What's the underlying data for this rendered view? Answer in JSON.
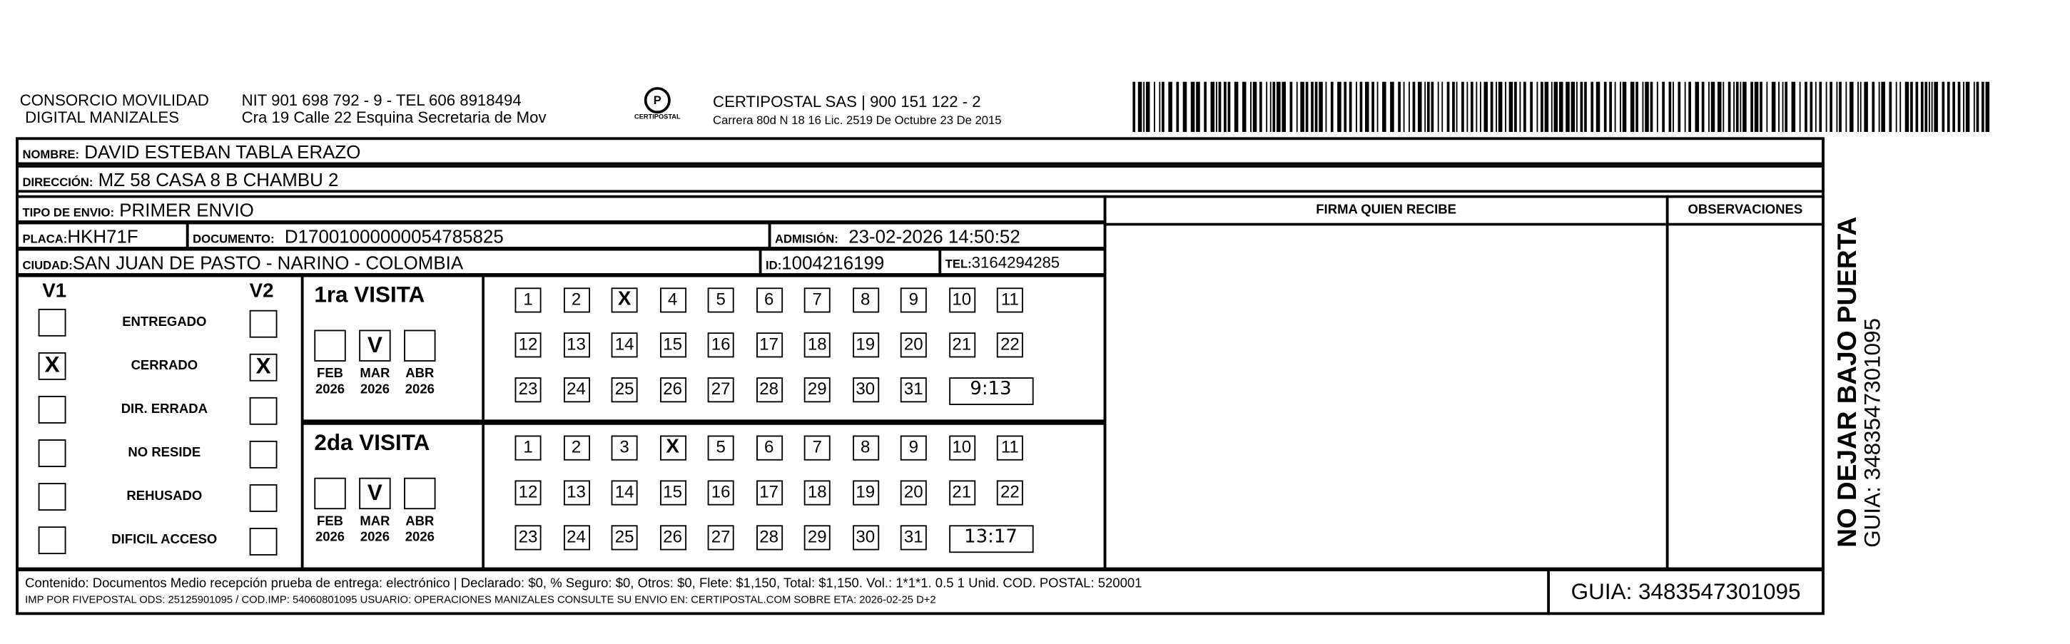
{
  "header": {
    "company_line1": "CONSORCIO MOVILIDAD",
    "company_line2": "DIGITAL MANIZALES",
    "nit": "NIT 901 698 792 - 9 - TEL 606 8918494",
    "address": "Cra 19 Calle 22 Esquina Secretaria de Mov",
    "logo_text": "CERTIPOSTAL",
    "carrier": "CERTIPOSTAL SAS | 900 151 122 - 2",
    "license": "Carrera 80d N 18 16  Lic. 2519 De Octubre 23 De 2015"
  },
  "fields": {
    "nombre_label": "NOMBRE:",
    "nombre": "DAVID ESTEBAN TABLA ERAZO",
    "direccion_label": "DIRECCIÓN:",
    "direccion": "MZ 58 CASA 8 B CHAMBU 2",
    "tipo_label": "TIPO DE ENVIO:",
    "tipo": "PRIMER ENVIO",
    "placa_label": "PLACA:",
    "placa": "HKH71F",
    "documento_label": "DOCUMENTO:",
    "documento": "D17001000000054785825",
    "admision_label": "ADMISIÓN:",
    "admision": "23-02-2026 14:50:52",
    "ciudad_label": "CIUDAD:",
    "ciudad": "SAN JUAN DE PASTO - NARINO - COLOMBIA",
    "id_label": "ID:",
    "id": "1004216199",
    "tel_label": "TEL:",
    "tel": "3164294285"
  },
  "signature": {
    "firma_label": "FIRMA QUIEN RECIBE",
    "observaciones_label": "OBSERVACIONES"
  },
  "status": {
    "v1_label": "V1",
    "v2_label": "V2",
    "items": [
      {
        "label": "ENTREGADO",
        "v1": "",
        "v2": ""
      },
      {
        "label": "CERRADO",
        "v1": "X",
        "v2": "X"
      },
      {
        "label": "DIR. ERRADA",
        "v1": "",
        "v2": ""
      },
      {
        "label": "NO RESIDE",
        "v1": "",
        "v2": ""
      },
      {
        "label": "REHUSADO",
        "v1": "",
        "v2": ""
      },
      {
        "label": "DIFICIL ACCESO",
        "v1": "",
        "v2": ""
      }
    ]
  },
  "visits": [
    {
      "title": "1ra VISITA",
      "months": [
        {
          "m": "FEB",
          "y": "2026",
          "mark": ""
        },
        {
          "m": "MAR",
          "y": "2026",
          "mark": "V"
        },
        {
          "m": "ABR",
          "y": "2026",
          "mark": ""
        }
      ],
      "checked_day": 3,
      "time": "9:13"
    },
    {
      "title": "2da VISITA",
      "months": [
        {
          "m": "FEB",
          "y": "2026",
          "mark": ""
        },
        {
          "m": "MAR",
          "y": "2026",
          "mark": "V"
        },
        {
          "m": "ABR",
          "y": "2026",
          "mark": ""
        }
      ],
      "checked_day": 4,
      "time": "13:17"
    }
  ],
  "footer": {
    "line1": "Contenido: Documentos Medio recepción prueba de entrega: electrónico | Declarado: $0, % Seguro: $0, Otros: $0, Flete: $1,150, Total: $1,150. Vol.: 1*1*1. 0.5  1 Unid. COD. POSTAL: 520001",
    "line2": "IMP POR FIVEPOSTAL ODS: 25125901095 / COD.IMP: 54060801095 USUARIO: OPERACIONES MANIZALES CONSULTE SU ENVIO EN: CERTIPOSTAL.COM SOBRE ETA: 2026-02-25 D+2",
    "guia": "GUIA: 3483547301095"
  },
  "side": {
    "warning": "NO DEJAR BAJO PUERTA",
    "guia": "GUIA: 3483547301095"
  }
}
